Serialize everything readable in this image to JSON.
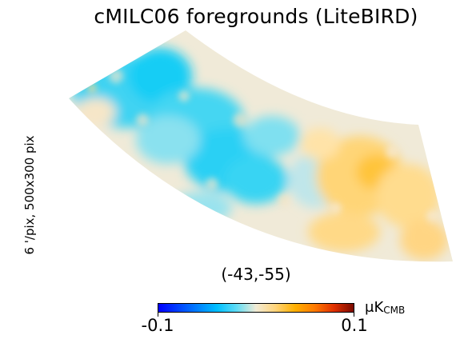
{
  "title": "cMILC06 foregrounds (LiteBIRD)",
  "side_label": "6 '/pix,   500x300 pix",
  "coordinates": "(-43,-55)",
  "colorbar": {
    "min_label": "-0.1",
    "max_label": "0.1",
    "unit_prefix": "μK",
    "unit_sub": "CMB",
    "colors": [
      "#0000ff",
      "#00bfff",
      "#f1ebd6",
      "#ffb000",
      "#7a0a00"
    ]
  }
}
